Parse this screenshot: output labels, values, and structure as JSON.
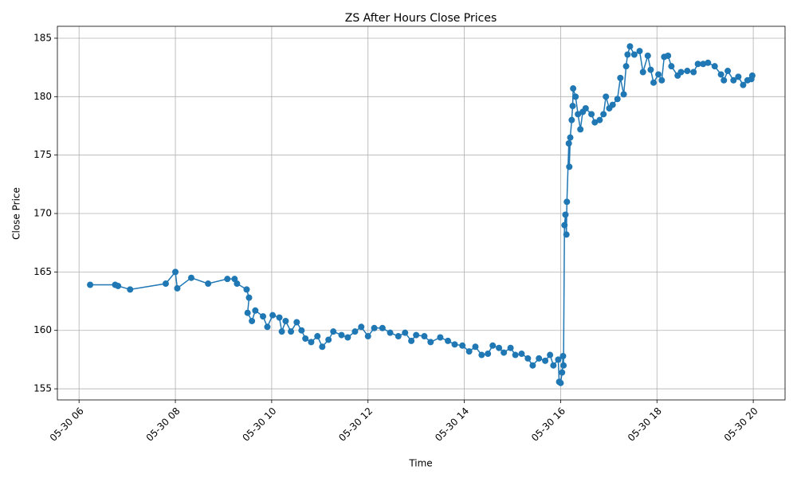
{
  "chart_data": {
    "type": "line",
    "title": "ZS After Hours Close Prices",
    "xlabel": "Time",
    "ylabel": "Close Price",
    "color": "#1f77b4",
    "grid": true,
    "markers": true,
    "xlim": [
      5.55,
      20.66
    ],
    "ylim": [
      154.05,
      186.02
    ],
    "xticks": [
      {
        "value": 6,
        "label": "05-30 06"
      },
      {
        "value": 8,
        "label": "05-30 08"
      },
      {
        "value": 10,
        "label": "05-30 10"
      },
      {
        "value": 12,
        "label": "05-30 12"
      },
      {
        "value": 14,
        "label": "05-30 14"
      },
      {
        "value": 16,
        "label": "05-30 16"
      },
      {
        "value": 18,
        "label": "05-30 18"
      },
      {
        "value": 20,
        "label": "05-30 20"
      }
    ],
    "yticks": [
      155,
      160,
      165,
      170,
      175,
      180,
      185
    ],
    "x": [
      6.23,
      6.75,
      6.81,
      7.06,
      7.8,
      8.0,
      8.04,
      8.33,
      8.68,
      9.08,
      9.23,
      9.28,
      9.48,
      9.53,
      9.5,
      9.59,
      9.66,
      9.82,
      9.91,
      10.02,
      10.16,
      10.21,
      10.29,
      10.4,
      10.52,
      10.62,
      10.7,
      10.82,
      10.95,
      11.05,
      11.18,
      11.28,
      11.45,
      11.58,
      11.73,
      11.86,
      12.0,
      12.13,
      12.3,
      12.46,
      12.63,
      12.77,
      12.9,
      13.0,
      13.17,
      13.3,
      13.5,
      13.66,
      13.8,
      13.96,
      14.1,
      14.23,
      14.36,
      14.49,
      14.59,
      14.72,
      14.82,
      14.96,
      15.06,
      15.19,
      15.32,
      15.42,
      15.55,
      15.68,
      15.78,
      15.85,
      15.95,
      15.97,
      16.0,
      16.03,
      16.05,
      16.06,
      16.08,
      16.1,
      16.12,
      16.13,
      16.17,
      16.18,
      16.2,
      16.23,
      16.25,
      16.26,
      16.31,
      16.36,
      16.41,
      16.46,
      16.52,
      16.64,
      16.71,
      16.81,
      16.89,
      16.94,
      17.01,
      17.08,
      17.18,
      17.24,
      17.31,
      17.36,
      17.39,
      17.44,
      17.53,
      17.64,
      17.71,
      17.81,
      17.87,
      17.93,
      18.03,
      18.1,
      18.15,
      18.23,
      18.3,
      18.43,
      18.5,
      18.63,
      18.76,
      18.85,
      18.96,
      19.06,
      19.2,
      19.33,
      19.39,
      19.47,
      19.59,
      19.69,
      19.79,
      19.88,
      19.96,
      19.98
    ],
    "values": [
      163.9,
      163.9,
      163.8,
      163.5,
      164.0,
      165.0,
      163.6,
      164.5,
      164.0,
      164.4,
      164.4,
      164.0,
      163.5,
      162.8,
      161.5,
      160.8,
      161.7,
      161.2,
      160.3,
      161.3,
      161.1,
      159.9,
      160.8,
      159.9,
      160.7,
      160.0,
      159.3,
      159.0,
      159.5,
      158.6,
      159.2,
      159.9,
      159.6,
      159.4,
      159.9,
      160.3,
      159.5,
      160.2,
      160.2,
      159.8,
      159.5,
      159.8,
      159.1,
      159.6,
      159.5,
      159.0,
      159.4,
      159.1,
      158.8,
      158.7,
      158.2,
      158.6,
      157.9,
      158.0,
      158.7,
      158.5,
      158.1,
      158.5,
      157.9,
      158.0,
      157.6,
      157.0,
      157.6,
      157.4,
      157.9,
      157.0,
      157.5,
      155.6,
      155.5,
      156.4,
      157.8,
      157.0,
      169.0,
      169.9,
      168.2,
      171.0,
      176.0,
      174.0,
      176.5,
      178.0,
      179.2,
      180.7,
      180.0,
      178.5,
      177.2,
      178.7,
      179.0,
      178.5,
      177.8,
      178.0,
      178.5,
      180.0,
      179.0,
      179.3,
      179.8,
      181.6,
      180.2,
      182.6,
      183.6,
      184.3,
      183.6,
      183.9,
      182.1,
      183.5,
      182.3,
      181.2,
      181.9,
      181.4,
      183.4,
      183.5,
      182.6,
      181.8,
      182.1,
      182.2,
      182.1,
      182.8,
      182.8,
      182.9,
      182.6,
      181.9,
      181.4,
      182.2,
      181.4,
      181.7,
      181.0,
      181.4,
      181.5,
      181.8
    ]
  }
}
